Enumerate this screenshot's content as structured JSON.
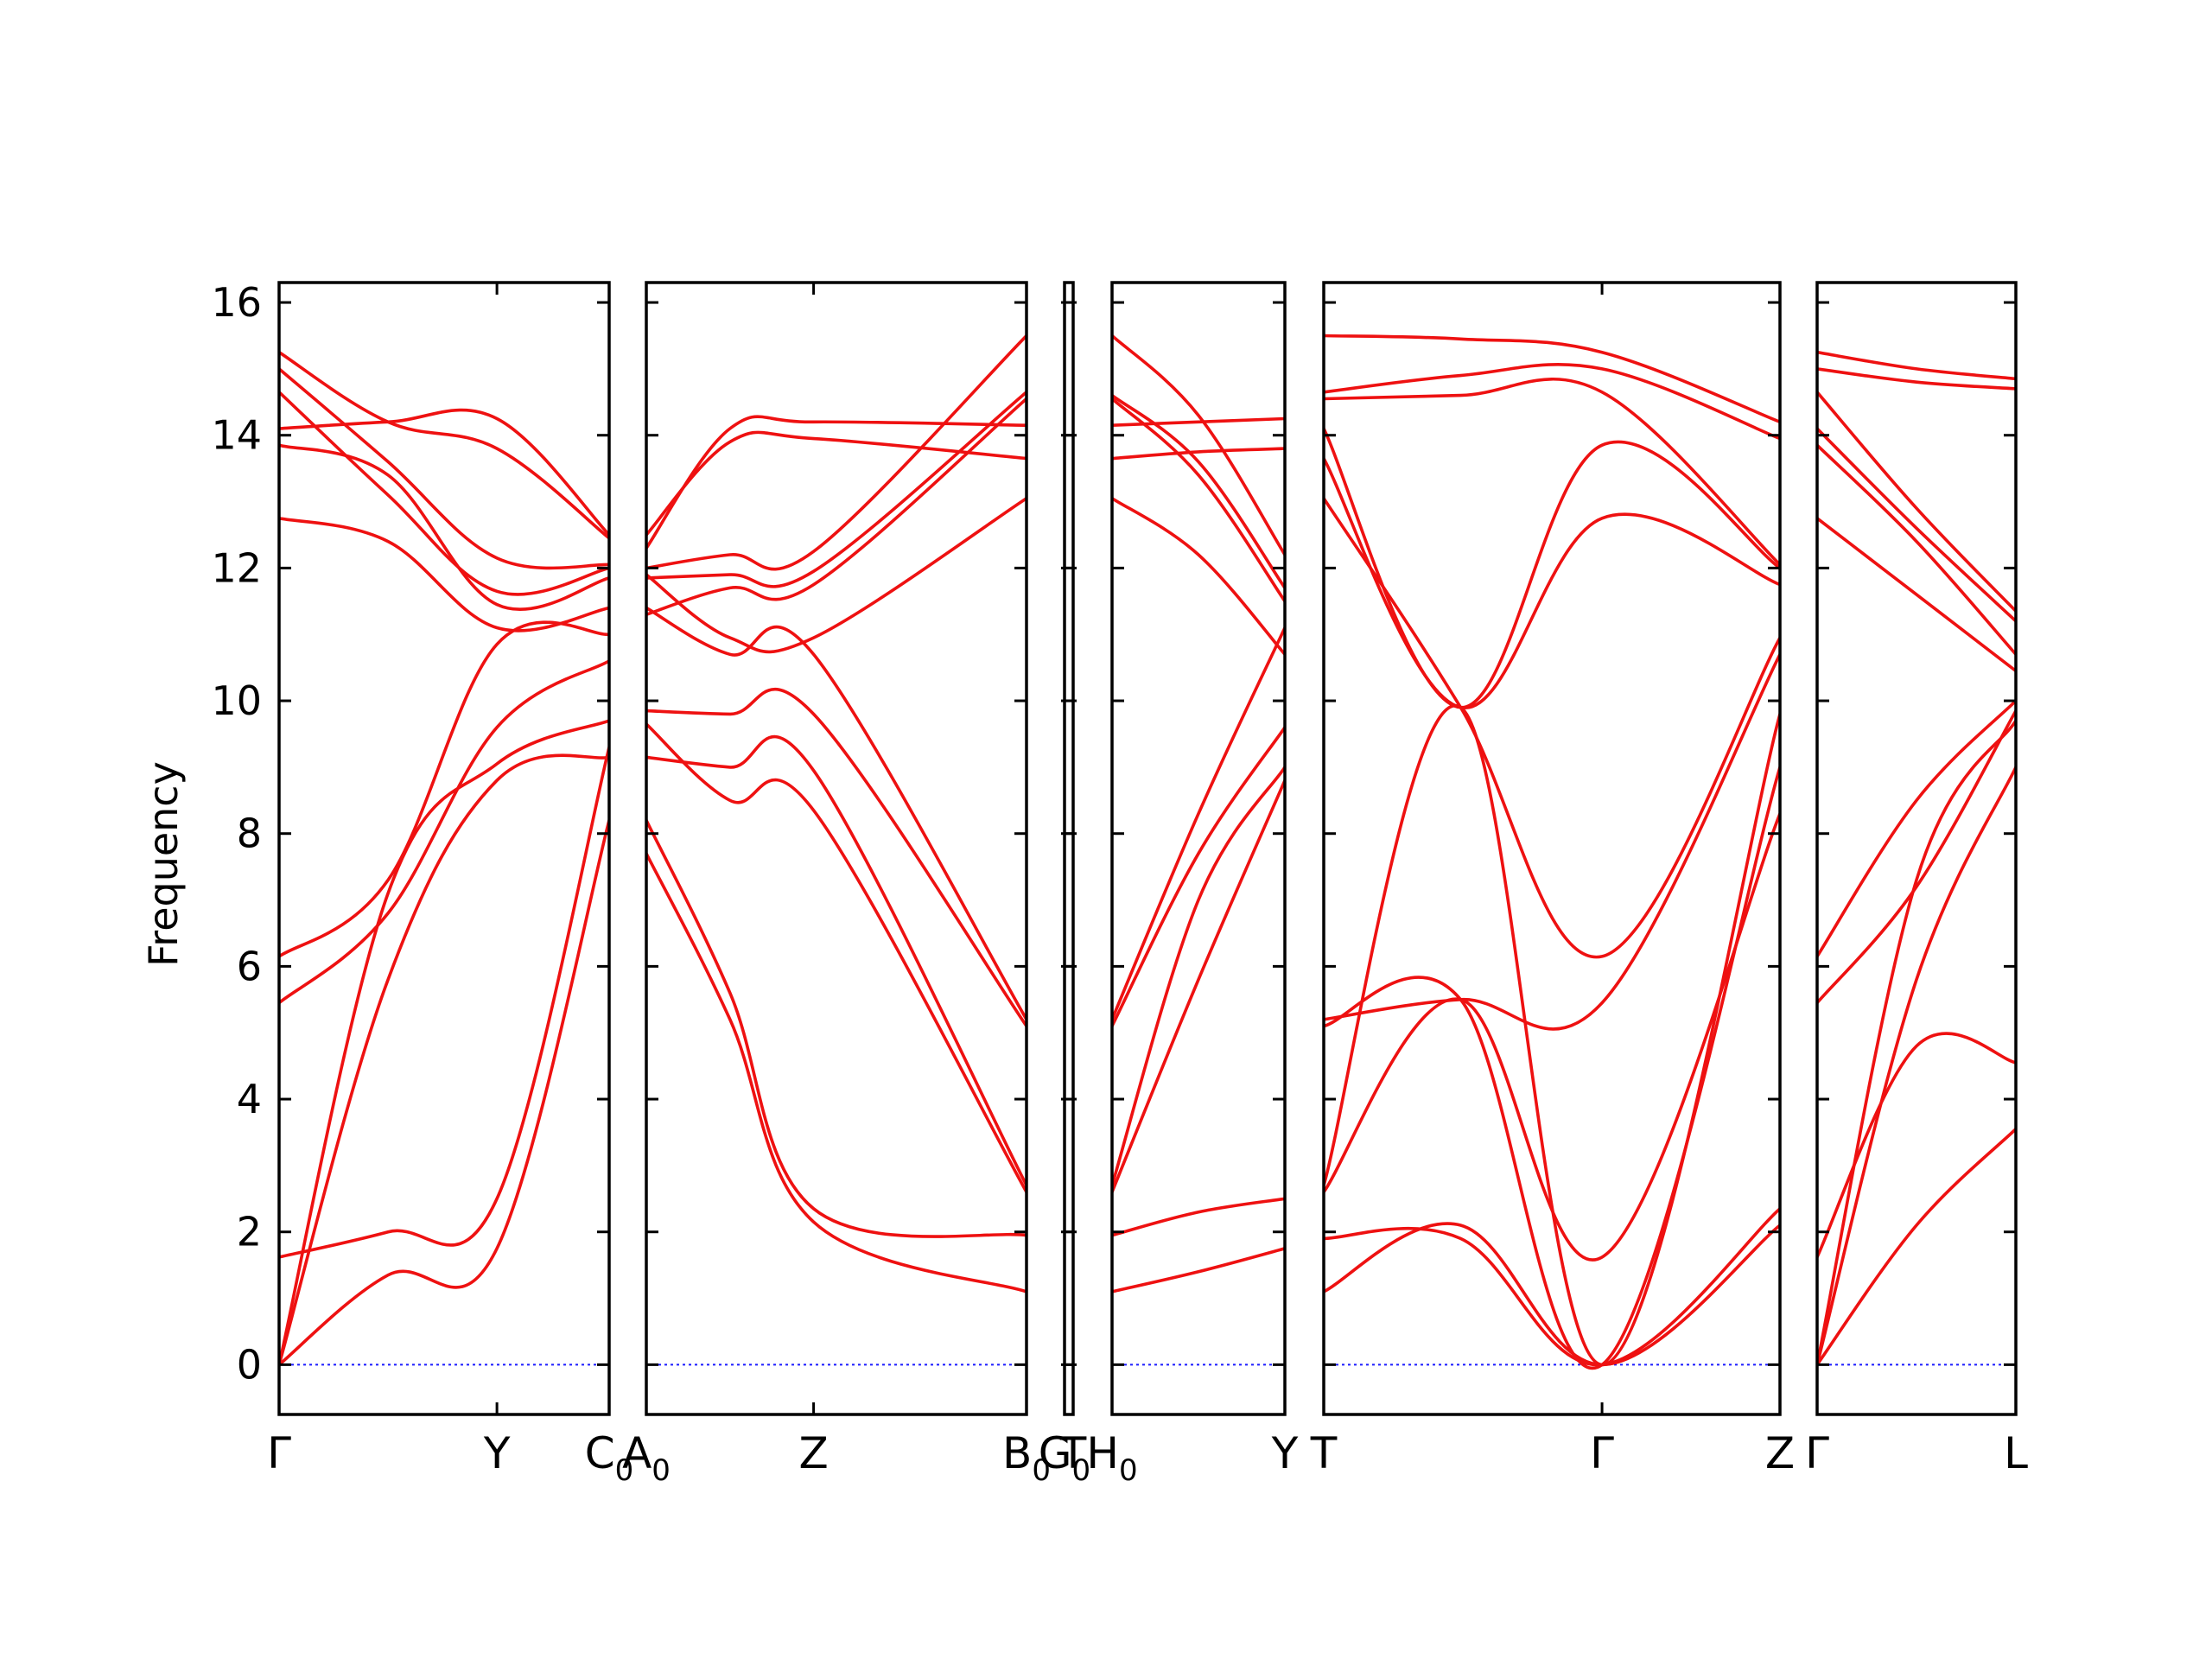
{
  "chart_data": {
    "type": "line",
    "title": "",
    "xlabel": "",
    "ylabel": "Frequency",
    "ylim": [
      -0.75,
      16.3
    ],
    "yticks": [
      0,
      2,
      4,
      6,
      8,
      10,
      12,
      14,
      16
    ],
    "grid": false,
    "legend": "none",
    "colors": {
      "band": "#ee1111",
      "zero_line": "#1a1aff",
      "axes": "#000000"
    },
    "panels": [
      {
        "name": "gamma-y-c0",
        "x_range": [
          0,
          1
        ],
        "ticks": [
          {
            "at": 0,
            "label": "Γ",
            "sub": ""
          },
          {
            "at": 0.66,
            "label": "Y",
            "sub": ""
          },
          {
            "at": 1,
            "label": "C",
            "sub": "0"
          }
        ],
        "bands": [
          {
            "x": [
              0,
              0.33,
              0.66,
              1
            ],
            "y": [
              0,
              1.35,
              1.75,
              8.2
            ]
          },
          {
            "x": [
              0,
              0.33,
              0.66,
              1
            ],
            "y": [
              1.62,
              2.0,
              2.5,
              9.3
            ]
          },
          {
            "x": [
              0,
              0.33,
              0.66,
              1
            ],
            "y": [
              0,
              5.8,
              8.8,
              9.15
            ]
          },
          {
            "x": [
              0,
              0.33,
              0.66,
              1
            ],
            "y": [
              0,
              7.1,
              9.05,
              9.7
            ]
          },
          {
            "x": [
              0,
              0.33,
              0.66,
              1
            ],
            "y": [
              5.45,
              6.8,
              9.6,
              10.6
            ]
          },
          {
            "x": [
              0,
              0.33,
              0.66,
              1
            ],
            "y": [
              6.15,
              7.3,
              10.85,
              11.0
            ]
          },
          {
            "x": [
              0,
              0.33,
              0.66,
              1
            ],
            "y": [
              12.75,
              12.4,
              11.1,
              11.4
            ]
          },
          {
            "x": [
              0,
              0.33,
              0.66,
              1
            ],
            "y": [
              13.85,
              13.4,
              11.45,
              11.85
            ]
          },
          {
            "x": [
              0,
              0.33,
              0.66,
              1
            ],
            "y": [
              14.65,
              13.1,
              11.65,
              12.0
            ]
          },
          {
            "x": [
              0,
              0.33,
              0.66,
              1
            ],
            "y": [
              15.0,
              13.6,
              12.15,
              12.05
            ]
          },
          {
            "x": [
              0,
              0.33,
              0.66,
              1
            ],
            "y": [
              15.25,
              14.2,
              13.8,
              12.45
            ]
          },
          {
            "x": [
              0,
              0.33,
              0.66,
              1
            ],
            "y": [
              14.1,
              14.2,
              14.25,
              12.5
            ]
          }
        ]
      },
      {
        "name": "a0-z-b0",
        "x_range": [
          0,
          1
        ],
        "ticks": [
          {
            "at": 0,
            "label": "A",
            "sub": "0"
          },
          {
            "at": 0.44,
            "label": "Z",
            "sub": ""
          },
          {
            "at": 1,
            "label": "B",
            "sub": "0"
          }
        ],
        "bands": [
          {
            "x": [
              0,
              0.22,
              0.44,
              1
            ],
            "y": [
              7.7,
              5.2,
              2.15,
              1.1
            ]
          },
          {
            "x": [
              0,
              0.22,
              0.44,
              1
            ],
            "y": [
              8.2,
              5.6,
              2.35,
              1.95
            ]
          },
          {
            "x": [
              0,
              0.22,
              0.44,
              1
            ],
            "y": [
              9.65,
              8.5,
              8.35,
              2.6
            ]
          },
          {
            "x": [
              0,
              0.22,
              0.44,
              1
            ],
            "y": [
              9.15,
              9.0,
              8.95,
              2.7
            ]
          },
          {
            "x": [
              0,
              0.22,
              0.44,
              1
            ],
            "y": [
              9.85,
              9.8,
              9.8,
              5.1
            ]
          },
          {
            "x": [
              0,
              0.22,
              0.44,
              1
            ],
            "y": [
              11.4,
              10.7,
              10.7,
              5.2
            ]
          },
          {
            "x": [
              0,
              0.22,
              0.44,
              1
            ],
            "y": [
              11.9,
              10.95,
              10.95,
              13.05
            ]
          },
          {
            "x": [
              0,
              0.22,
              0.44,
              1
            ],
            "y": [
              11.3,
              11.7,
              11.75,
              14.55
            ]
          },
          {
            "x": [
              0,
              0.22,
              0.44,
              1
            ],
            "y": [
              11.85,
              11.9,
              11.95,
              14.65
            ]
          },
          {
            "x": [
              0,
              0.22,
              0.44,
              1
            ],
            "y": [
              12.0,
              12.2,
              12.25,
              15.5
            ]
          },
          {
            "x": [
              0,
              0.22,
              0.44,
              1
            ],
            "y": [
              12.5,
              13.9,
              13.95,
              13.65
            ]
          },
          {
            "x": [
              0,
              0.22,
              0.44,
              1
            ],
            "y": [
              12.3,
              14.1,
              14.2,
              14.15
            ]
          }
        ]
      },
      {
        "name": "g0-thin",
        "x_range": [
          0,
          1
        ],
        "ticks": [
          {
            "at": 0,
            "label": "G",
            "sub": "0"
          },
          {
            "at": 1,
            "label": "T",
            "sub": ""
          }
        ],
        "bands": []
      },
      {
        "name": "h0-y",
        "x_range": [
          0,
          1
        ],
        "ticks": [
          {
            "at": 0,
            "label": "H",
            "sub": "0"
          },
          {
            "at": 1,
            "label": "Y",
            "sub": ""
          }
        ],
        "bands": [
          {
            "x": [
              0,
              0.5,
              1
            ],
            "y": [
              1.1,
              1.4,
              1.75
            ]
          },
          {
            "x": [
              0,
              0.5,
              1
            ],
            "y": [
              1.95,
              2.3,
              2.5
            ]
          },
          {
            "x": [
              0,
              0.5,
              1
            ],
            "y": [
              2.6,
              5.8,
              8.8
            ]
          },
          {
            "x": [
              0,
              0.5,
              1
            ],
            "y": [
              2.7,
              7.0,
              9.0
            ]
          },
          {
            "x": [
              0,
              0.5,
              1
            ],
            "y": [
              5.1,
              7.7,
              9.6
            ]
          },
          {
            "x": [
              0,
              0.5,
              1
            ],
            "y": [
              5.2,
              8.3,
              11.1
            ]
          },
          {
            "x": [
              0,
              0.5,
              1
            ],
            "y": [
              13.05,
              12.2,
              10.7
            ]
          },
          {
            "x": [
              0,
              0.5,
              1
            ],
            "y": [
              14.55,
              13.4,
              11.5
            ]
          },
          {
            "x": [
              0,
              0.5,
              1
            ],
            "y": [
              14.6,
              13.6,
              11.7
            ]
          },
          {
            "x": [
              0,
              0.5,
              1
            ],
            "y": [
              15.5,
              14.3,
              12.2
            ]
          },
          {
            "x": [
              0,
              0.5,
              1
            ],
            "y": [
              13.65,
              13.75,
              13.8
            ]
          },
          {
            "x": [
              0,
              0.5,
              1
            ],
            "y": [
              14.15,
              14.2,
              14.25
            ]
          }
        ]
      },
      {
        "name": "t-gamma-z",
        "x_range": [
          0,
          1
        ],
        "ticks": [
          {
            "at": 0,
            "label": "T",
            "sub": ""
          },
          {
            "at": 0.61,
            "label": "Γ",
            "sub": ""
          },
          {
            "at": 1,
            "label": "Z",
            "sub": ""
          }
        ],
        "bands": [
          {
            "x": [
              0,
              0.3,
              0.61,
              1
            ],
            "y": [
              1.1,
              2.1,
              0,
              2.1
            ]
          },
          {
            "x": [
              0,
              0.3,
              0.61,
              1
            ],
            "y": [
              1.9,
              1.9,
              0,
              2.35
            ]
          },
          {
            "x": [
              0,
              0.3,
              0.61,
              1
            ],
            "y": [
              2.6,
              5.5,
              1.62,
              8.3
            ]
          },
          {
            "x": [
              0,
              0.3,
              0.61,
              1
            ],
            "y": [
              2.7,
              9.9,
              0,
              9.8
            ]
          },
          {
            "x": [
              0,
              0.3,
              0.61,
              1
            ],
            "y": [
              5.1,
              5.5,
              0,
              9.0
            ]
          },
          {
            "x": [
              0,
              0.3,
              0.61,
              1
            ],
            "y": [
              5.2,
              5.5,
              5.45,
              10.7
            ]
          },
          {
            "x": [
              0,
              0.3,
              0.61,
              1
            ],
            "y": [
              13.05,
              9.9,
              6.15,
              10.95
            ]
          },
          {
            "x": [
              0,
              0.3,
              0.61,
              1
            ],
            "y": [
              13.65,
              9.9,
              12.75,
              11.75
            ]
          },
          {
            "x": [
              0,
              0.3,
              0.61,
              1
            ],
            "y": [
              14.1,
              9.9,
              13.85,
              12.0
            ]
          },
          {
            "x": [
              0,
              0.3,
              0.61,
              1
            ],
            "y": [
              14.55,
              14.6,
              14.65,
              12.05
            ]
          },
          {
            "x": [
              0,
              0.3,
              0.61,
              1
            ],
            "y": [
              14.65,
              14.9,
              15.0,
              13.95
            ]
          },
          {
            "x": [
              0,
              0.3,
              0.61,
              1
            ],
            "y": [
              15.5,
              15.45,
              15.25,
              14.2
            ]
          }
        ]
      },
      {
        "name": "gamma-l",
        "x_range": [
          0,
          1
        ],
        "ticks": [
          {
            "at": 0,
            "label": "Γ",
            "sub": ""
          },
          {
            "at": 1,
            "label": "L",
            "sub": ""
          }
        ],
        "bands": [
          {
            "x": [
              0,
              0.5,
              1
            ],
            "y": [
              0,
              2.1,
              3.55
            ]
          },
          {
            "x": [
              0,
              0.5,
              1
            ],
            "y": [
              1.62,
              4.8,
              4.55
            ]
          },
          {
            "x": [
              0,
              0.5,
              1
            ],
            "y": [
              0,
              5.8,
              9.0
            ]
          },
          {
            "x": [
              0,
              0.5,
              1
            ],
            "y": [
              0,
              7.3,
              9.7
            ]
          },
          {
            "x": [
              0,
              0.5,
              1
            ],
            "y": [
              5.45,
              7.2,
              9.85
            ]
          },
          {
            "x": [
              0,
              0.5,
              1
            ],
            "y": [
              6.15,
              8.5,
              10.0
            ]
          },
          {
            "x": [
              0,
              0.5,
              1
            ],
            "y": [
              12.75,
              11.6,
              10.45
            ]
          },
          {
            "x": [
              0,
              0.5,
              1
            ],
            "y": [
              13.85,
              12.4,
              10.7
            ]
          },
          {
            "x": [
              0,
              0.5,
              1
            ],
            "y": [
              14.1,
              12.6,
              11.2
            ]
          },
          {
            "x": [
              0,
              0.5,
              1
            ],
            "y": [
              14.65,
              12.9,
              11.35
            ]
          },
          {
            "x": [
              0,
              0.5,
              1
            ],
            "y": [
              15.0,
              14.8,
              14.7
            ]
          },
          {
            "x": [
              0,
              0.5,
              1
            ],
            "y": [
              15.25,
              15.0,
              14.85
            ]
          }
        ]
      }
    ]
  }
}
